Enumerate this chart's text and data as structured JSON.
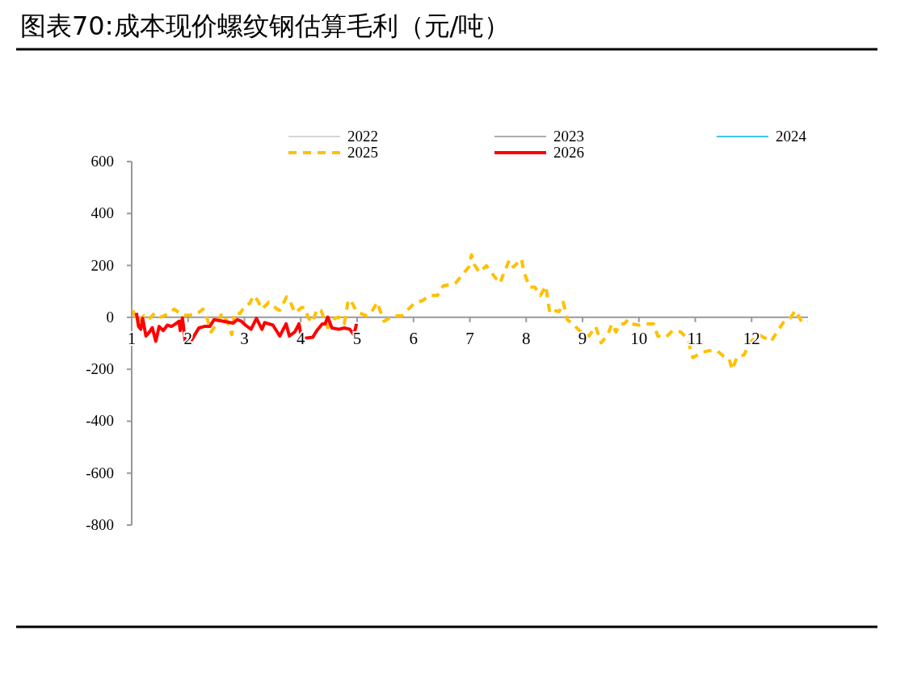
{
  "chart_data": {
    "type": "line",
    "title": "图表70:成本现价螺纹钢估算毛利（元/吨）",
    "xlim": [
      1,
      13
    ],
    "xticks": [
      1,
      2,
      3,
      4,
      5,
      6,
      7,
      8,
      9,
      10,
      11,
      12
    ],
    "ylim": [
      -800,
      600
    ],
    "yticks": [
      -800,
      -600,
      -400,
      -200,
      0,
      200,
      400,
      600
    ],
    "grid": false,
    "legend": "top",
    "series": [
      {
        "name": "2022",
        "color": "#c8c8c8"
      },
      {
        "name": "2023",
        "color": "#909090"
      },
      {
        "name": "2024",
        "color": "#00b0f0"
      },
      {
        "name": "2025",
        "color": "#ffc000",
        "line_style": "dashed",
        "x": [
          1.024,
          1.097,
          1.219,
          1.292,
          1.414,
          1.511,
          1.633,
          1.754,
          1.9,
          1.973,
          2.144,
          2.265,
          2.338,
          2.411,
          2.533,
          2.606,
          2.703,
          2.776,
          2.825,
          2.922,
          3.019,
          3.092,
          3.165,
          3.238,
          3.311,
          3.433,
          3.579,
          3.628,
          3.749,
          3.798,
          3.895,
          4.017,
          4.066,
          4.139,
          4.212,
          4.285,
          4.358,
          4.479,
          4.601,
          4.674,
          4.771,
          4.844,
          4.917,
          4.99,
          5.161,
          5.234,
          5.355,
          5.477,
          5.647,
          5.793,
          5.939,
          6.036,
          6.158,
          6.28,
          6.426,
          6.527,
          6.742,
          6.862,
          6.982,
          7.03,
          7.078,
          7.173,
          7.293,
          7.437,
          7.533,
          7.628,
          7.7,
          7.772,
          7.844,
          7.916,
          7.964,
          8.059,
          8.155,
          8.251,
          8.347,
          8.419,
          8.49,
          8.586,
          8.658,
          8.73,
          8.85,
          8.945,
          9.113,
          9.233,
          9.329,
          9.448,
          9.52,
          9.592,
          9.664,
          9.736,
          9.808,
          9.879,
          9.999,
          10.095,
          10.262,
          10.334,
          10.478,
          10.598,
          10.741,
          10.861,
          10.957,
          11.125,
          11.245,
          11.388,
          11.508,
          11.604,
          11.652,
          11.748,
          11.867,
          11.963,
          12.131,
          12.346,
          12.466,
          12.562,
          12.682,
          12.778,
          12.897,
          12.993
        ],
        "values": [
          27,
          -20,
          6,
          -9,
          17,
          1,
          11,
          32,
          8,
          8,
          11,
          32,
          -4,
          -56,
          -15,
          17,
          -20,
          -67,
          17,
          15,
          48,
          53,
          84,
          64,
          32,
          58,
          32,
          27,
          79,
          69,
          17,
          38,
          38,
          -4,
          -20,
          32,
          27,
          -40,
          -4,
          1,
          -25,
          69,
          53,
          22,
          6,
          11,
          58,
          -15,
          6,
          6,
          38,
          58,
          64,
          84,
          84,
          121,
          131,
          162,
          194,
          241,
          204,
          173,
          199,
          157,
          131,
          183,
          220,
          194,
          209,
          225,
          173,
          116,
          116,
          84,
          121,
          17,
          27,
          22,
          58,
          -9,
          -30,
          -51,
          -72,
          -35,
          -98,
          -67,
          -25,
          -56,
          -25,
          -25,
          -9,
          -25,
          -30,
          -25,
          -25,
          -72,
          -77,
          -51,
          -56,
          -82,
          -155,
          -134,
          -129,
          -129,
          -150,
          -160,
          -202,
          -150,
          -145,
          -98,
          -67,
          -93,
          -51,
          -20,
          -4,
          27,
          -20,
          -15
        ]
      },
      {
        "name": "2026",
        "color": "#ff0000",
        "line_style": "solid",
        "x": [
          1.083,
          1.122,
          1.161,
          1.195,
          1.253,
          1.316,
          1.365,
          1.428,
          1.487,
          1.56,
          1.633,
          1.706,
          1.779,
          1.842,
          1.861,
          1.9,
          1.949,
          2.036,
          2.119,
          2.192,
          2.29,
          2.387,
          2.46,
          2.63,
          2.8,
          2.873,
          2.946,
          3.019,
          3.117,
          3.214,
          3.311,
          3.36,
          3.506,
          3.628,
          3.74,
          3.798,
          3.895,
          3.968,
          4.017,
          4.212,
          4.285,
          4.382,
          4.431,
          4.479,
          4.552,
          4.674,
          4.771,
          4.869,
          4.942,
          4.99
        ],
        "values": [
          17,
          -35,
          -46,
          -4,
          -72,
          -56,
          -40,
          -92,
          -35,
          -51,
          -30,
          -35,
          -25,
          -15,
          -51,
          -2,
          -92,
          -98,
          -67,
          -41,
          -35,
          -35,
          -9,
          -15,
          -22,
          -9,
          -15,
          -30,
          -46,
          -4,
          -46,
          -20,
          -30,
          -72,
          -25,
          -72,
          -56,
          -25,
          -82,
          -77,
          -51,
          -25,
          -25,
          1,
          -41,
          -46,
          -41,
          -46,
          -67,
          -25
        ]
      }
    ]
  }
}
